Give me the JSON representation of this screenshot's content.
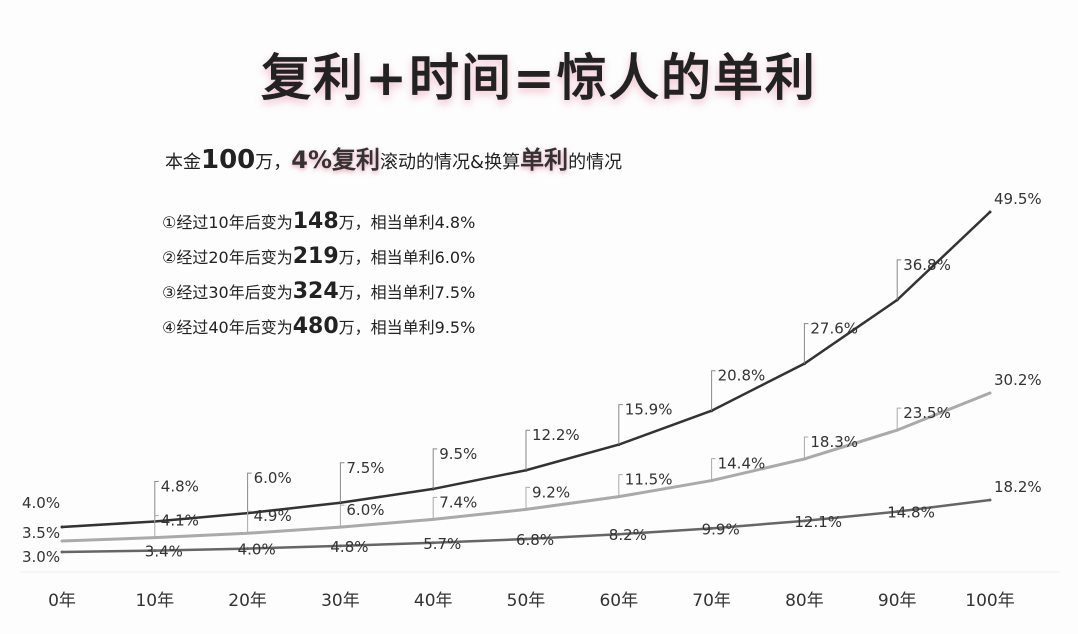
{
  "title": "复利+时间=惊人的单利",
  "subtitle": {
    "p1": "本金",
    "p2": "100",
    "p3": "万，",
    "p4": "4%复利",
    "p5": "滚动的情况&换算",
    "p6": "单利",
    "p7": "的情况"
  },
  "notes": [
    {
      "pre": "①经过10年后变为",
      "amount": "148",
      "post": "万，相当单利4.8%"
    },
    {
      "pre": "②经过20年后变为",
      "amount": "219",
      "post": "万，相当单利6.0%"
    },
    {
      "pre": "③经过30年后变为",
      "amount": "324",
      "post": "万，相当单利7.5%"
    },
    {
      "pre": "④经过40年后变为",
      "amount": "480",
      "post": "万，相当单利9.5%"
    }
  ],
  "chart_data": {
    "type": "line",
    "title": "复利+时间=惊人的单利",
    "categories": [
      "0年",
      "10年",
      "20年",
      "30年",
      "40年",
      "50年",
      "60年",
      "70年",
      "80年",
      "90年",
      "100年"
    ],
    "ylim": [
      3,
      50
    ],
    "grid": false,
    "series": [
      {
        "name": "4%",
        "color": "#333333",
        "values": [
          4.0,
          4.8,
          6.0,
          7.5,
          9.5,
          12.2,
          15.9,
          20.8,
          27.6,
          36.8,
          49.5
        ]
      },
      {
        "name": "3.5%",
        "color": "#aaaaaa",
        "values": [
          3.5,
          4.1,
          4.9,
          6.0,
          7.4,
          9.2,
          11.5,
          14.4,
          18.3,
          23.5,
          30.2
        ]
      },
      {
        "name": "3%",
        "color": "#666666",
        "values": [
          3.0,
          3.4,
          4.0,
          4.8,
          5.7,
          6.8,
          8.2,
          9.9,
          12.1,
          14.8,
          18.2
        ]
      }
    ]
  }
}
